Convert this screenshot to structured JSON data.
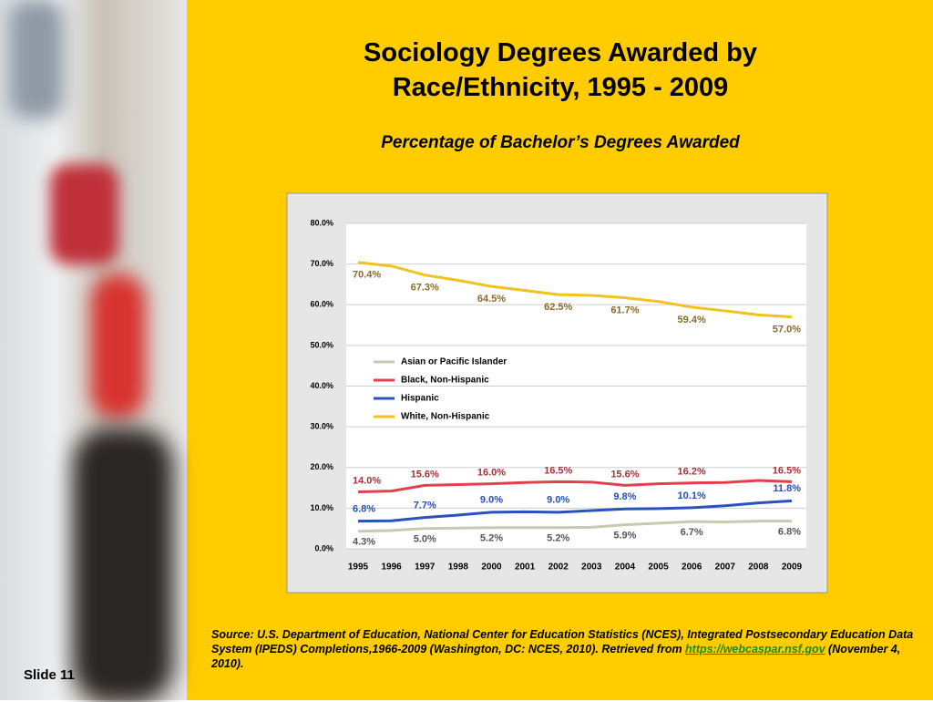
{
  "chart_data": {
    "type": "line",
    "title_lines": [
      "Sociology Degrees Awarded by",
      "Race/Ethnicity, 1995 - 2009"
    ],
    "subtitle": "Percentage of Bachelor’s Degrees Awarded",
    "categories": [
      "1995",
      "1996",
      "1997",
      "1998",
      "2000",
      "2001",
      "2002",
      "2003",
      "2004",
      "2005",
      "2006",
      "2007",
      "2008",
      "2009"
    ],
    "series": [
      {
        "name": "Asian or Pacific Islander",
        "color": "#c9c9b0",
        "values": [
          4.3,
          4.5,
          5.0,
          5.1,
          5.2,
          5.2,
          5.2,
          5.3,
          5.9,
          6.3,
          6.7,
          6.6,
          6.8,
          6.8
        ],
        "value_labels": [
          "4.3%",
          null,
          "5.0%",
          null,
          "5.2%",
          null,
          "5.2%",
          null,
          "5.9%",
          null,
          "6.7%",
          null,
          null,
          "6.8%"
        ]
      },
      {
        "name": "Black, Non-Hispanic",
        "color": "#e2404e",
        "values": [
          14.0,
          14.2,
          15.6,
          15.8,
          16.0,
          16.3,
          16.5,
          16.4,
          15.6,
          16.0,
          16.2,
          16.3,
          16.8,
          16.5
        ],
        "value_labels": [
          "14.0%",
          null,
          "15.6%",
          null,
          "16.0%",
          null,
          "16.5%",
          null,
          "15.6%",
          null,
          "16.2%",
          null,
          null,
          "16.5%"
        ]
      },
      {
        "name": "Hispanic",
        "color": "#2a52be",
        "values": [
          6.8,
          6.9,
          7.7,
          8.3,
          9.0,
          9.1,
          9.0,
          9.4,
          9.8,
          9.9,
          10.1,
          10.6,
          11.3,
          11.8
        ],
        "value_labels": [
          "6.8%",
          null,
          "7.7%",
          null,
          "9.0%",
          null,
          "9.0%",
          null,
          "9.8%",
          null,
          "10.1%",
          null,
          null,
          "11.8%"
        ]
      },
      {
        "name": "White, Non-Hispanic",
        "color": "#f2c21e",
        "values": [
          70.4,
          69.5,
          67.3,
          66.0,
          64.5,
          63.5,
          62.5,
          62.3,
          61.7,
          60.8,
          59.4,
          58.5,
          57.5,
          57.0
        ],
        "value_labels": [
          "70.4%",
          null,
          "67.3%",
          null,
          "64.5%",
          null,
          "62.5%",
          null,
          "61.7%",
          null,
          "59.4%",
          null,
          null,
          "57.0%"
        ]
      }
    ],
    "ylim": [
      0,
      80
    ],
    "yticks": [
      {
        "value": 0,
        "label": "0.0%"
      },
      {
        "value": 10,
        "label": "10.0%"
      },
      {
        "value": 20,
        "label": "20.0%"
      },
      {
        "value": 30,
        "label": "30.0%"
      },
      {
        "value": 40,
        "label": "40.0%"
      },
      {
        "value": 50,
        "label": "50.0%"
      },
      {
        "value": 60,
        "label": "60.0%"
      },
      {
        "value": 70,
        "label": "70.0%"
      },
      {
        "value": 80,
        "label": "80.0%"
      }
    ],
    "grid": true,
    "legend": "left"
  },
  "source": {
    "before": "Source: U.S. Department of Education, National Center for Education Statistics (NCES), Integrated Postsecondary Education Data System (IPEDS) Completions,1966-2009 (Washington, DC: NCES, 2010). Retrieved from ",
    "link": "https://webcaspar.nsf.gov",
    "after": " (November 4, 2010)."
  },
  "slide_label": "Slide 11"
}
